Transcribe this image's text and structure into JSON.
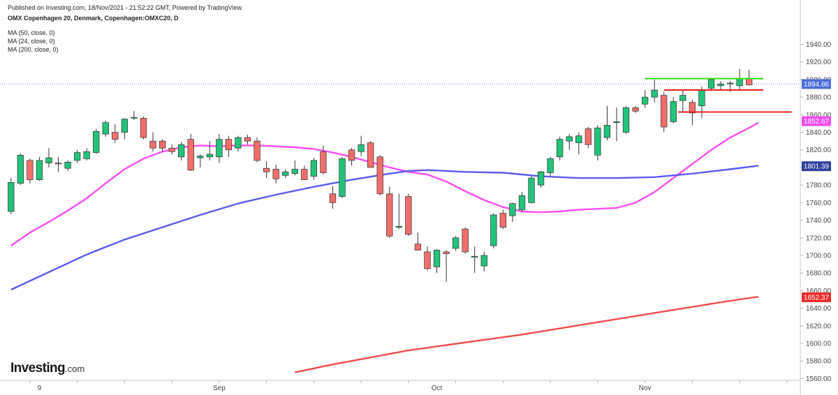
{
  "header": {
    "published": "Published on Investing.com, 18/Nov/2021 - 21:52:22 GMT, Powered by TradingView.",
    "symbol": "OMX Copenhagen 20, Denmark, Copenhagen:OMXC20, D"
  },
  "indicators": [
    "MA (50, close, 0)",
    "MA (24, close, 0)",
    "MA (200, close, 0)"
  ],
  "logo": {
    "brand": "Investing",
    "suffix": ".com"
  },
  "chart_data": {
    "type": "candlestick",
    "ylim": [
      1550,
      1950
    ],
    "yticks": [
      1560,
      1580,
      1600,
      1620,
      1640,
      1660,
      1680,
      1700,
      1720,
      1740,
      1760,
      1780,
      1800,
      1820,
      1840,
      1860,
      1880,
      1900,
      1920,
      1940
    ],
    "xlim": [
      0,
      86
    ],
    "xticks": [
      {
        "label": "9",
        "x": 3
      },
      {
        "label": "Sep",
        "x": 22
      },
      {
        "label": "Oct",
        "x": 45
      },
      {
        "label": "Nov",
        "x": 67
      }
    ],
    "up_color": "#22c37a",
    "down_color": "#f26e6a",
    "candles": [
      {
        "o": 1750,
        "h": 1788,
        "l": 1747,
        "c": 1783
      },
      {
        "o": 1782,
        "h": 1816,
        "l": 1780,
        "c": 1814
      },
      {
        "o": 1808,
        "h": 1810,
        "l": 1782,
        "c": 1786
      },
      {
        "o": 1786,
        "h": 1812,
        "l": 1785,
        "c": 1808
      },
      {
        "o": 1805,
        "h": 1822,
        "l": 1800,
        "c": 1811
      },
      {
        "o": 1805,
        "h": 1812,
        "l": 1795,
        "c": 1804
      },
      {
        "o": 1799,
        "h": 1808,
        "l": 1796,
        "c": 1806
      },
      {
        "o": 1808,
        "h": 1820,
        "l": 1805,
        "c": 1817
      },
      {
        "o": 1810,
        "h": 1822,
        "l": 1808,
        "c": 1818
      },
      {
        "o": 1817,
        "h": 1844,
        "l": 1815,
        "c": 1841
      },
      {
        "o": 1838,
        "h": 1853,
        "l": 1835,
        "c": 1851
      },
      {
        "o": 1840,
        "h": 1849,
        "l": 1828,
        "c": 1832
      },
      {
        "o": 1840,
        "h": 1856,
        "l": 1832,
        "c": 1855
      },
      {
        "o": 1856,
        "h": 1864,
        "l": 1854,
        "c": 1857
      },
      {
        "o": 1856,
        "h": 1858,
        "l": 1832,
        "c": 1834
      },
      {
        "o": 1830,
        "h": 1840,
        "l": 1818,
        "c": 1822
      },
      {
        "o": 1830,
        "h": 1832,
        "l": 1818,
        "c": 1822
      },
      {
        "o": 1822,
        "h": 1826,
        "l": 1815,
        "c": 1818
      },
      {
        "o": 1812,
        "h": 1829,
        "l": 1808,
        "c": 1826
      },
      {
        "o": 1832,
        "h": 1838,
        "l": 1796,
        "c": 1797
      },
      {
        "o": 1811,
        "h": 1815,
        "l": 1800,
        "c": 1813
      },
      {
        "o": 1812,
        "h": 1830,
        "l": 1808,
        "c": 1815
      },
      {
        "o": 1812,
        "h": 1838,
        "l": 1805,
        "c": 1832
      },
      {
        "o": 1832,
        "h": 1836,
        "l": 1812,
        "c": 1820
      },
      {
        "o": 1822,
        "h": 1836,
        "l": 1818,
        "c": 1834
      },
      {
        "o": 1834,
        "h": 1837,
        "l": 1826,
        "c": 1830
      },
      {
        "o": 1830,
        "h": 1834,
        "l": 1806,
        "c": 1808
      },
      {
        "o": 1799,
        "h": 1807,
        "l": 1788,
        "c": 1795
      },
      {
        "o": 1798,
        "h": 1803,
        "l": 1782,
        "c": 1787
      },
      {
        "o": 1791,
        "h": 1798,
        "l": 1788,
        "c": 1795
      },
      {
        "o": 1793,
        "h": 1808,
        "l": 1791,
        "c": 1798
      },
      {
        "o": 1798,
        "h": 1802,
        "l": 1788,
        "c": 1786
      },
      {
        "o": 1790,
        "h": 1811,
        "l": 1786,
        "c": 1808
      },
      {
        "o": 1818,
        "h": 1825,
        "l": 1792,
        "c": 1794
      },
      {
        "o": 1770,
        "h": 1779,
        "l": 1753,
        "c": 1760
      },
      {
        "o": 1767,
        "h": 1812,
        "l": 1765,
        "c": 1810
      },
      {
        "o": 1820,
        "h": 1822,
        "l": 1802,
        "c": 1808
      },
      {
        "o": 1818,
        "h": 1836,
        "l": 1813,
        "c": 1826
      },
      {
        "o": 1828,
        "h": 1830,
        "l": 1800,
        "c": 1800
      },
      {
        "o": 1812,
        "h": 1814,
        "l": 1768,
        "c": 1770
      },
      {
        "o": 1770,
        "h": 1778,
        "l": 1720,
        "c": 1722
      },
      {
        "o": 1732,
        "h": 1770,
        "l": 1730,
        "c": 1733
      },
      {
        "o": 1767,
        "h": 1770,
        "l": 1722,
        "c": 1724
      },
      {
        "o": 1713,
        "h": 1726,
        "l": 1708,
        "c": 1706
      },
      {
        "o": 1704,
        "h": 1710,
        "l": 1683,
        "c": 1685
      },
      {
        "o": 1687,
        "h": 1707,
        "l": 1680,
        "c": 1706
      },
      {
        "o": 1704,
        "h": 1706,
        "l": 1670,
        "c": 1702
      },
      {
        "o": 1708,
        "h": 1722,
        "l": 1705,
        "c": 1720
      },
      {
        "o": 1730,
        "h": 1732,
        "l": 1702,
        "c": 1704
      },
      {
        "o": 1698,
        "h": 1710,
        "l": 1680,
        "c": 1699
      },
      {
        "o": 1688,
        "h": 1704,
        "l": 1682,
        "c": 1700
      },
      {
        "o": 1711,
        "h": 1748,
        "l": 1708,
        "c": 1746
      },
      {
        "o": 1748,
        "h": 1752,
        "l": 1730,
        "c": 1732
      },
      {
        "o": 1745,
        "h": 1760,
        "l": 1738,
        "c": 1759
      },
      {
        "o": 1752,
        "h": 1772,
        "l": 1750,
        "c": 1768
      },
      {
        "o": 1760,
        "h": 1790,
        "l": 1759,
        "c": 1788
      },
      {
        "o": 1780,
        "h": 1796,
        "l": 1777,
        "c": 1795
      },
      {
        "o": 1794,
        "h": 1812,
        "l": 1790,
        "c": 1810
      },
      {
        "o": 1812,
        "h": 1835,
        "l": 1808,
        "c": 1832
      },
      {
        "o": 1830,
        "h": 1838,
        "l": 1820,
        "c": 1835
      },
      {
        "o": 1828,
        "h": 1840,
        "l": 1815,
        "c": 1836
      },
      {
        "o": 1844,
        "h": 1846,
        "l": 1822,
        "c": 1826
      },
      {
        "o": 1814,
        "h": 1848,
        "l": 1808,
        "c": 1845
      },
      {
        "o": 1834,
        "h": 1870,
        "l": 1831,
        "c": 1848
      },
      {
        "o": 1852,
        "h": 1868,
        "l": 1830,
        "c": 1852
      },
      {
        "o": 1840,
        "h": 1870,
        "l": 1838,
        "c": 1868
      },
      {
        "o": 1868,
        "h": 1870,
        "l": 1862,
        "c": 1864
      },
      {
        "o": 1872,
        "h": 1888,
        "l": 1868,
        "c": 1880
      },
      {
        "o": 1880,
        "h": 1900,
        "l": 1874,
        "c": 1888
      },
      {
        "o": 1882,
        "h": 1886,
        "l": 1840,
        "c": 1846
      },
      {
        "o": 1852,
        "h": 1880,
        "l": 1850,
        "c": 1875
      },
      {
        "o": 1876,
        "h": 1888,
        "l": 1862,
        "c": 1882
      },
      {
        "o": 1874,
        "h": 1877,
        "l": 1848,
        "c": 1862
      },
      {
        "o": 1870,
        "h": 1892,
        "l": 1856,
        "c": 1888
      },
      {
        "o": 1890,
        "h": 1902,
        "l": 1887,
        "c": 1900
      },
      {
        "o": 1893,
        "h": 1898,
        "l": 1888,
        "c": 1895
      },
      {
        "o": 1895,
        "h": 1898,
        "l": 1886,
        "c": 1896
      },
      {
        "o": 1893,
        "h": 1912,
        "l": 1888,
        "c": 1901
      },
      {
        "o": 1901,
        "h": 1911,
        "l": 1893,
        "c": 1894
      }
    ],
    "lines": [
      {
        "name": "MA (24, close, 0)",
        "color": "#ff4cf7",
        "points": [
          [
            0,
            1711
          ],
          [
            2,
            1726
          ],
          [
            4,
            1738
          ],
          [
            6,
            1751
          ],
          [
            8,
            1765
          ],
          [
            10,
            1782
          ],
          [
            12,
            1798
          ],
          [
            14,
            1810
          ],
          [
            16,
            1818
          ],
          [
            18,
            1823
          ],
          [
            20,
            1825
          ],
          [
            22,
            1824
          ],
          [
            24,
            1825
          ],
          [
            26,
            1825
          ],
          [
            28,
            1824
          ],
          [
            30,
            1823
          ],
          [
            32,
            1821
          ],
          [
            34,
            1817
          ],
          [
            36,
            1812
          ],
          [
            38,
            1806
          ],
          [
            40,
            1800
          ],
          [
            42,
            1795
          ],
          [
            44,
            1792
          ],
          [
            46,
            1784
          ],
          [
            48,
            1773
          ],
          [
            50,
            1763
          ],
          [
            52,
            1755
          ],
          [
            54,
            1750
          ],
          [
            56,
            1749
          ],
          [
            58,
            1750
          ],
          [
            60,
            1752
          ],
          [
            62,
            1753
          ],
          [
            64,
            1754
          ],
          [
            66,
            1760
          ],
          [
            68,
            1772
          ],
          [
            70,
            1788
          ],
          [
            72,
            1804
          ],
          [
            74,
            1820
          ],
          [
            76,
            1834
          ],
          [
            78,
            1845
          ],
          [
            79,
            1851
          ]
        ]
      },
      {
        "name": "MA (50, close, 0)",
        "color": "#5b5bf0",
        "points": [
          [
            0,
            1661
          ],
          [
            4,
            1681
          ],
          [
            8,
            1701
          ],
          [
            12,
            1718
          ],
          [
            16,
            1732
          ],
          [
            20,
            1746
          ],
          [
            24,
            1759
          ],
          [
            28,
            1769
          ],
          [
            32,
            1778
          ],
          [
            36,
            1786
          ],
          [
            40,
            1793
          ],
          [
            42,
            1796
          ],
          [
            44,
            1797
          ],
          [
            46,
            1796
          ],
          [
            48,
            1795
          ],
          [
            52,
            1794
          ],
          [
            56,
            1790
          ],
          [
            60,
            1788
          ],
          [
            64,
            1788
          ],
          [
            68,
            1789
          ],
          [
            72,
            1793
          ],
          [
            76,
            1798
          ],
          [
            79,
            1802
          ]
        ]
      },
      {
        "name": "MA (200, close, 0)",
        "color": "#f24b4b",
        "points": [
          [
            30,
            1567
          ],
          [
            34,
            1576
          ],
          [
            38,
            1584
          ],
          [
            42,
            1592
          ],
          [
            46,
            1598
          ],
          [
            50,
            1604
          ],
          [
            54,
            1610
          ],
          [
            58,
            1617
          ],
          [
            62,
            1624
          ],
          [
            66,
            1631
          ],
          [
            70,
            1638
          ],
          [
            74,
            1645
          ],
          [
            77,
            1650
          ],
          [
            79,
            1653
          ]
        ]
      }
    ],
    "hlines": [
      {
        "kind": "resistance",
        "color": "#2fe216",
        "y": 1901,
        "x0": 67,
        "x1": 79.5
      },
      {
        "kind": "level",
        "color": "#e62020",
        "y": 1888,
        "x0": 69,
        "x1": 79.5
      },
      {
        "kind": "level",
        "color": "#e62020",
        "y": 1863,
        "x0": 70.5,
        "x1": 82.5
      }
    ],
    "price_line": {
      "y": 1894.86,
      "color": "#6a8cd6"
    },
    "price_labels": [
      {
        "value": "1894.86",
        "y": 1894.86,
        "color": "#4b6cd6"
      },
      {
        "value": "1852.67",
        "y": 1852.67,
        "color": "#f04cf0"
      },
      {
        "value": "1801.39",
        "y": 1801.39,
        "color": "#2f3fa0"
      },
      {
        "value": "1652.37",
        "y": 1652.37,
        "color": "#ef2b2b"
      }
    ]
  }
}
